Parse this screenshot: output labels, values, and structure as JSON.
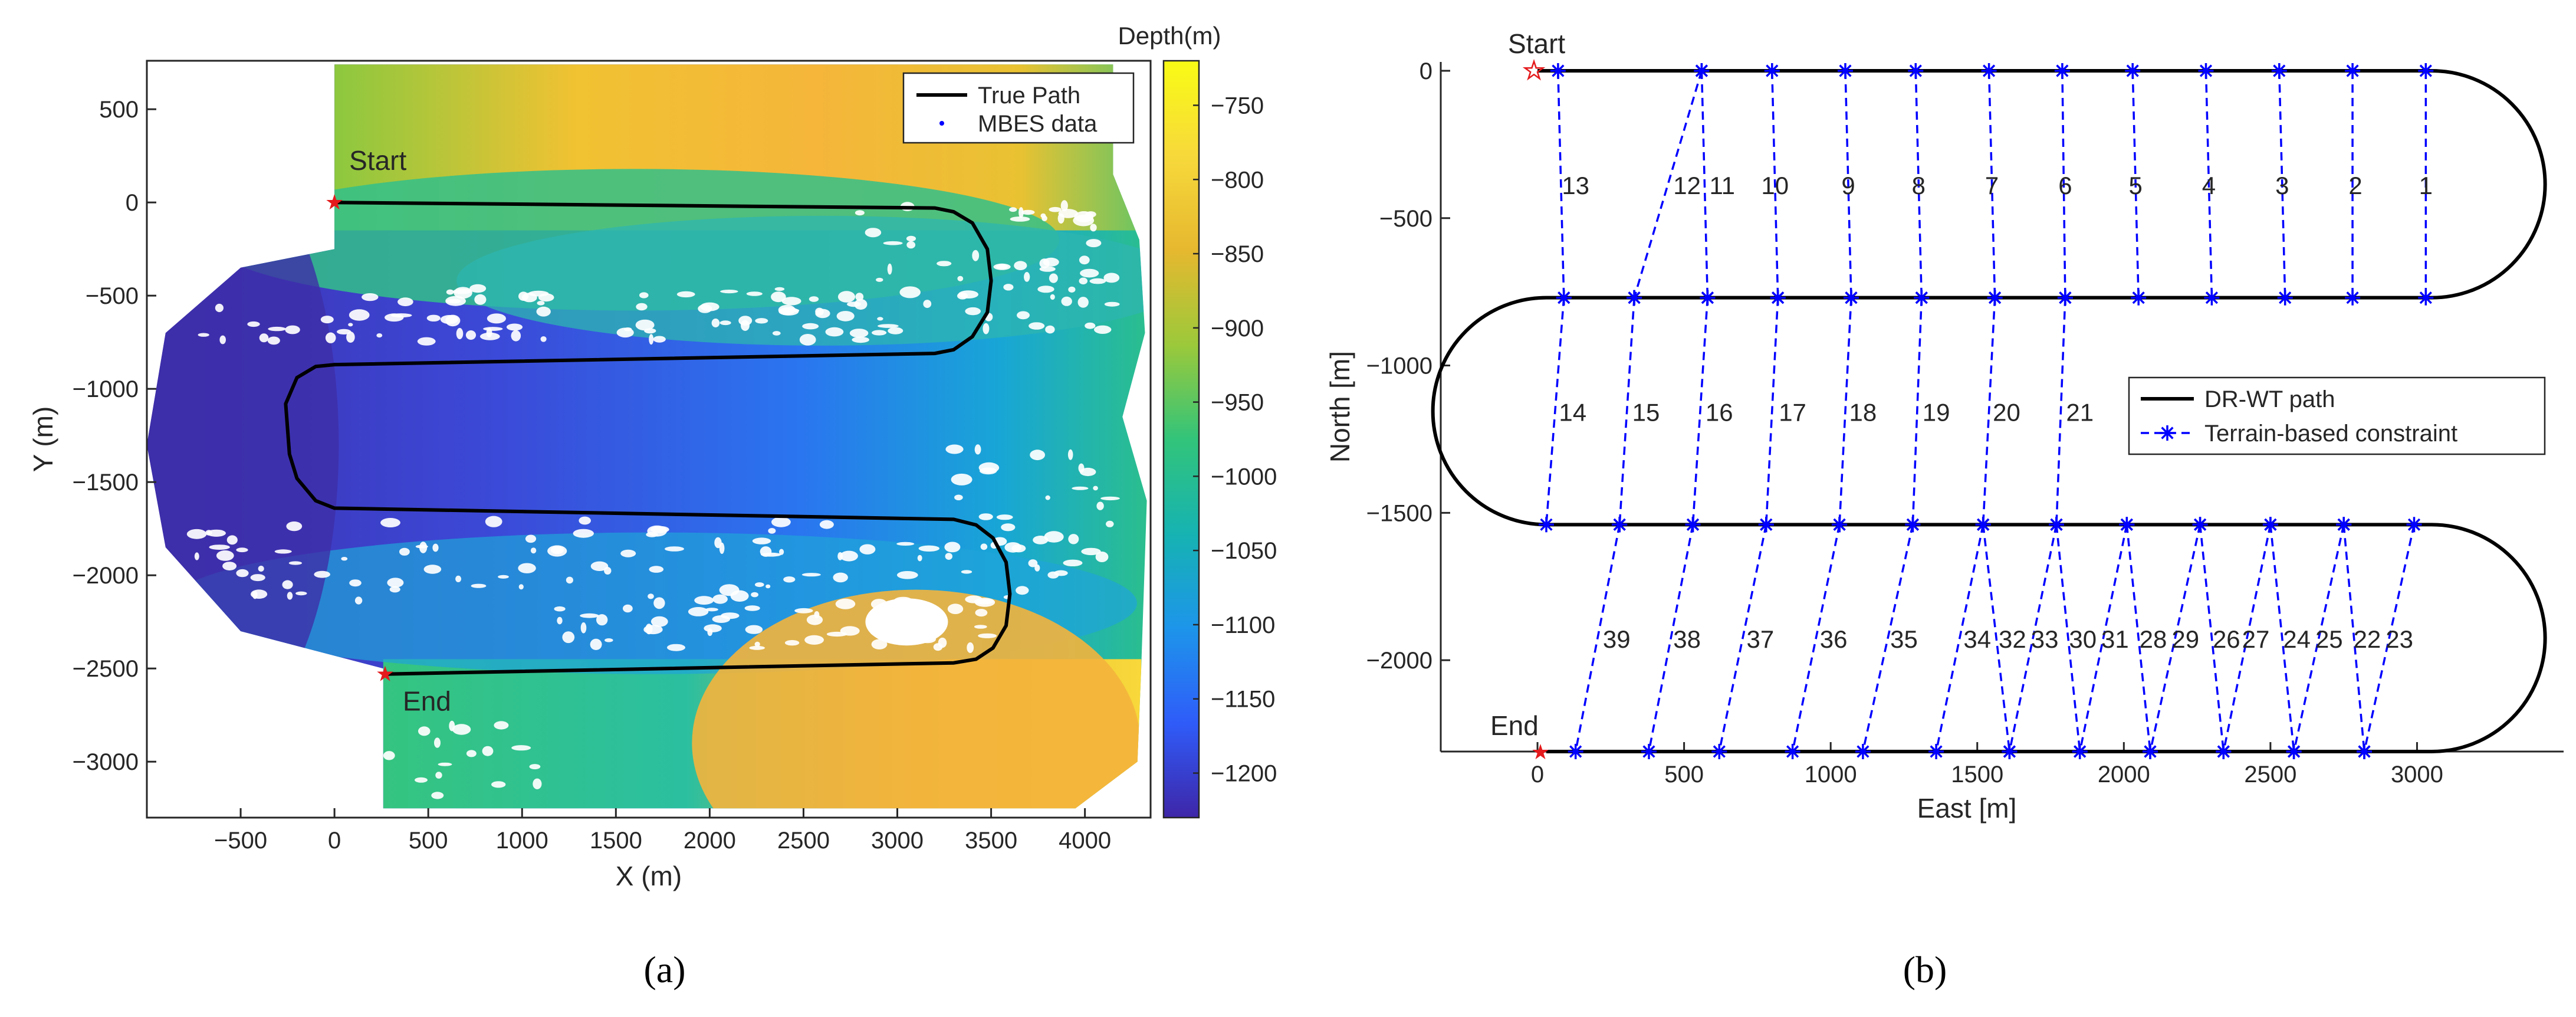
{
  "chart_data": [
    {
      "type": "scatter",
      "panel": "(a)",
      "xlabel": "X (m)",
      "ylabel": "Y (m)",
      "xlim": [
        -1000,
        4350
      ],
      "ylim": [
        -3300,
        760
      ],
      "xticks": [
        -500,
        0,
        500,
        1000,
        1500,
        2000,
        2500,
        3000,
        3500,
        4000
      ],
      "yticks": [
        -3000,
        -2500,
        -2000,
        -1500,
        -1000,
        -500,
        0,
        500
      ],
      "colorbar": {
        "title": "Depth(m)",
        "range": [
          -1230,
          -720
        ],
        "ticks": [
          -750,
          -800,
          -850,
          -900,
          -950,
          -1000,
          -1050,
          -1100,
          -1150,
          -1200
        ],
        "colors": [
          "#3e26a8",
          "#2f5cf9",
          "#1d95ea",
          "#16b3b2",
          "#32c47a",
          "#9cc93a",
          "#e6b82f",
          "#f7d93b",
          "#f9fb15"
        ]
      },
      "legend": {
        "position": "top-right",
        "entries": [
          "True Path",
          "MBES data"
        ]
      },
      "grid": false,
      "series": [
        {
          "name": "True Path",
          "color": "#000000",
          "points": [
            [
              0,
              0
            ],
            [
              3200,
              -30
            ],
            [
              3300,
              -50
            ],
            [
              3400,
              -110
            ],
            [
              3480,
              -250
            ],
            [
              3500,
              -420
            ],
            [
              3480,
              -590
            ],
            [
              3400,
              -720
            ],
            [
              3300,
              -790
            ],
            [
              3200,
              -810
            ],
            [
              0,
              -870
            ],
            [
              -100,
              -880
            ],
            [
              -200,
              -940
            ],
            [
              -260,
              -1080
            ],
            [
              -240,
              -1350
            ],
            [
              -200,
              -1480
            ],
            [
              -100,
              -1600
            ],
            [
              0,
              -1640
            ],
            [
              3300,
              -1700
            ],
            [
              3420,
              -1730
            ],
            [
              3510,
              -1800
            ],
            [
              3580,
              -1930
            ],
            [
              3600,
              -2100
            ],
            [
              3580,
              -2270
            ],
            [
              3510,
              -2390
            ],
            [
              3420,
              -2450
            ],
            [
              3300,
              -2470
            ],
            [
              270,
              -2530
            ]
          ]
        },
        {
          "name": "MBES data",
          "color": "#0000ff",
          "marker": "dot"
        }
      ],
      "annotations": [
        {
          "text": "Start",
          "x": 0,
          "y": 0
        },
        {
          "text": "End",
          "x": 270,
          "y": -2530
        }
      ]
    },
    {
      "type": "line",
      "panel": "(b)",
      "xlabel": "East [m]",
      "ylabel": "North [m]",
      "xlim": [
        -330,
        3500
      ],
      "ylim": [
        -2310,
        30
      ],
      "xticks": [
        0,
        500,
        1000,
        1500,
        2000,
        2500,
        3000
      ],
      "yticks": [
        0,
        -500,
        -1000,
        -1500,
        -2000
      ],
      "legend": {
        "position": "center-right",
        "entries": [
          "DR-WT path",
          "Terrain-based constraint"
        ]
      },
      "grid": false,
      "path_rows": [
        {
          "y": 0,
          "x_from": 0,
          "x_to": 3050
        },
        {
          "y": -770,
          "x_from": 30,
          "x_to": 3050
        },
        {
          "y": -1540,
          "x_from": 30,
          "x_to": 3050
        },
        {
          "y": -2310,
          "x_from": 30,
          "x_to": 3050
        }
      ],
      "turns": [
        {
          "side": "right",
          "from_y": 0,
          "to_y": -770
        },
        {
          "side": "left",
          "from_y": -770,
          "to_y": -1540
        },
        {
          "side": "right",
          "from_y": -1540,
          "to_y": -2310
        }
      ],
      "constraints": [
        {
          "id": "1",
          "x1": 3030,
          "y1": 0,
          "x2": 3030,
          "y2": -770,
          "lx": 3030,
          "ly": -390
        },
        {
          "id": "2",
          "x1": 2780,
          "y1": 0,
          "x2": 2780,
          "y2": -770,
          "lx": 2790,
          "ly": -390
        },
        {
          "id": "3",
          "x1": 2530,
          "y1": 0,
          "x2": 2550,
          "y2": -770,
          "lx": 2540,
          "ly": -390
        },
        {
          "id": "4",
          "x1": 2280,
          "y1": 0,
          "x2": 2300,
          "y2": -770,
          "lx": 2290,
          "ly": -390
        },
        {
          "id": "5",
          "x1": 2030,
          "y1": 0,
          "x2": 2050,
          "y2": -770,
          "lx": 2040,
          "ly": -390
        },
        {
          "id": "6",
          "x1": 1790,
          "y1": 0,
          "x2": 1800,
          "y2": -770,
          "lx": 1800,
          "ly": -390
        },
        {
          "id": "7",
          "x1": 1540,
          "y1": 0,
          "x2": 1560,
          "y2": -770,
          "lx": 1550,
          "ly": -390
        },
        {
          "id": "8",
          "x1": 1290,
          "y1": 0,
          "x2": 1310,
          "y2": -770,
          "lx": 1300,
          "ly": -390
        },
        {
          "id": "9",
          "x1": 1050,
          "y1": 0,
          "x2": 1070,
          "y2": -770,
          "lx": 1060,
          "ly": -390
        },
        {
          "id": "10",
          "x1": 800,
          "y1": 0,
          "x2": 820,
          "y2": -770,
          "lx": 810,
          "ly": -390
        },
        {
          "id": "11",
          "x1": 560,
          "y1": 0,
          "x2": 580,
          "y2": -770,
          "lx": 630,
          "ly": -390
        },
        {
          "id": "12",
          "x1": 560,
          "y1": 0,
          "x2": 330,
          "y2": -770,
          "lx": 510,
          "ly": -390
        },
        {
          "id": "13",
          "x1": 70,
          "y1": 0,
          "x2": 90,
          "y2": -770,
          "lx": 130,
          "ly": -390
        },
        {
          "id": "14",
          "x1": 90,
          "y1": -770,
          "x2": 30,
          "y2": -1540,
          "lx": 120,
          "ly": -1160
        },
        {
          "id": "15",
          "x1": 330,
          "y1": -770,
          "x2": 280,
          "y2": -1540,
          "lx": 370,
          "ly": -1160
        },
        {
          "id": "16",
          "x1": 580,
          "y1": -770,
          "x2": 530,
          "y2": -1540,
          "lx": 620,
          "ly": -1160
        },
        {
          "id": "17",
          "x1": 820,
          "y1": -770,
          "x2": 780,
          "y2": -1540,
          "lx": 870,
          "ly": -1160
        },
        {
          "id": "18",
          "x1": 1070,
          "y1": -770,
          "x2": 1030,
          "y2": -1540,
          "lx": 1110,
          "ly": -1160
        },
        {
          "id": "19",
          "x1": 1310,
          "y1": -770,
          "x2": 1280,
          "y2": -1540,
          "lx": 1360,
          "ly": -1160
        },
        {
          "id": "20",
          "x1": 1560,
          "y1": -770,
          "x2": 1520,
          "y2": -1540,
          "lx": 1600,
          "ly": -1160
        },
        {
          "id": "21",
          "x1": 1800,
          "y1": -770,
          "x2": 1770,
          "y2": -1540,
          "lx": 1850,
          "ly": -1160
        },
        {
          "id": "39",
          "x1": 280,
          "y1": -1540,
          "x2": 130,
          "y2": -2310,
          "lx": 270,
          "ly": -1930
        },
        {
          "id": "38",
          "x1": 530,
          "y1": -1540,
          "x2": 380,
          "y2": -2310,
          "lx": 510,
          "ly": -1930
        },
        {
          "id": "37",
          "x1": 780,
          "y1": -1540,
          "x2": 620,
          "y2": -2310,
          "lx": 760,
          "ly": -1930
        },
        {
          "id": "36",
          "x1": 1030,
          "y1": -1540,
          "x2": 870,
          "y2": -2310,
          "lx": 1010,
          "ly": -1930
        },
        {
          "id": "35",
          "x1": 1280,
          "y1": -1540,
          "x2": 1110,
          "y2": -2310,
          "lx": 1250,
          "ly": -1930
        },
        {
          "id": "34",
          "x1": 1520,
          "y1": -1540,
          "x2": 1360,
          "y2": -2310,
          "lx": 1500,
          "ly": -1930
        },
        {
          "id": "32",
          "x1": 1520,
          "y1": -1540,
          "x2": 1610,
          "y2": -2310,
          "lx": 1620,
          "ly": -1930
        },
        {
          "id": "33",
          "x1": 1770,
          "y1": -1540,
          "x2": 1610,
          "y2": -2310,
          "lx": 1730,
          "ly": -1930
        },
        {
          "id": "30",
          "x1": 1770,
          "y1": -1540,
          "x2": 1850,
          "y2": -2310,
          "lx": 1860,
          "ly": -1930
        },
        {
          "id": "31",
          "x1": 2010,
          "y1": -1540,
          "x2": 1850,
          "y2": -2310,
          "lx": 1970,
          "ly": -1930
        },
        {
          "id": "28",
          "x1": 2010,
          "y1": -1540,
          "x2": 2090,
          "y2": -2310,
          "lx": 2100,
          "ly": -1930
        },
        {
          "id": "29",
          "x1": 2260,
          "y1": -1540,
          "x2": 2090,
          "y2": -2310,
          "lx": 2210,
          "ly": -1930
        },
        {
          "id": "26",
          "x1": 2260,
          "y1": -1540,
          "x2": 2340,
          "y2": -2310,
          "lx": 2350,
          "ly": -1930
        },
        {
          "id": "27",
          "x1": 2500,
          "y1": -1540,
          "x2": 2340,
          "y2": -2310,
          "lx": 2450,
          "ly": -1930
        },
        {
          "id": "24",
          "x1": 2500,
          "y1": -1540,
          "x2": 2580,
          "y2": -2310,
          "lx": 2590,
          "ly": -1930
        },
        {
          "id": "25",
          "x1": 2750,
          "y1": -1540,
          "x2": 2580,
          "y2": -2310,
          "lx": 2700,
          "ly": -1930
        },
        {
          "id": "22",
          "x1": 2750,
          "y1": -1540,
          "x2": 2820,
          "y2": -2310,
          "lx": 2830,
          "ly": -1930
        },
        {
          "id": "23",
          "x1": 2990,
          "y1": -1540,
          "x2": 2820,
          "y2": -2310,
          "lx": 2940,
          "ly": -1930
        }
      ],
      "annotations": [
        {
          "text": "Start",
          "x": 0,
          "y": 0
        },
        {
          "text": "End",
          "x": 30,
          "y": -2310
        }
      ]
    }
  ],
  "captions": {
    "a": "(a)",
    "b": "(b)"
  }
}
